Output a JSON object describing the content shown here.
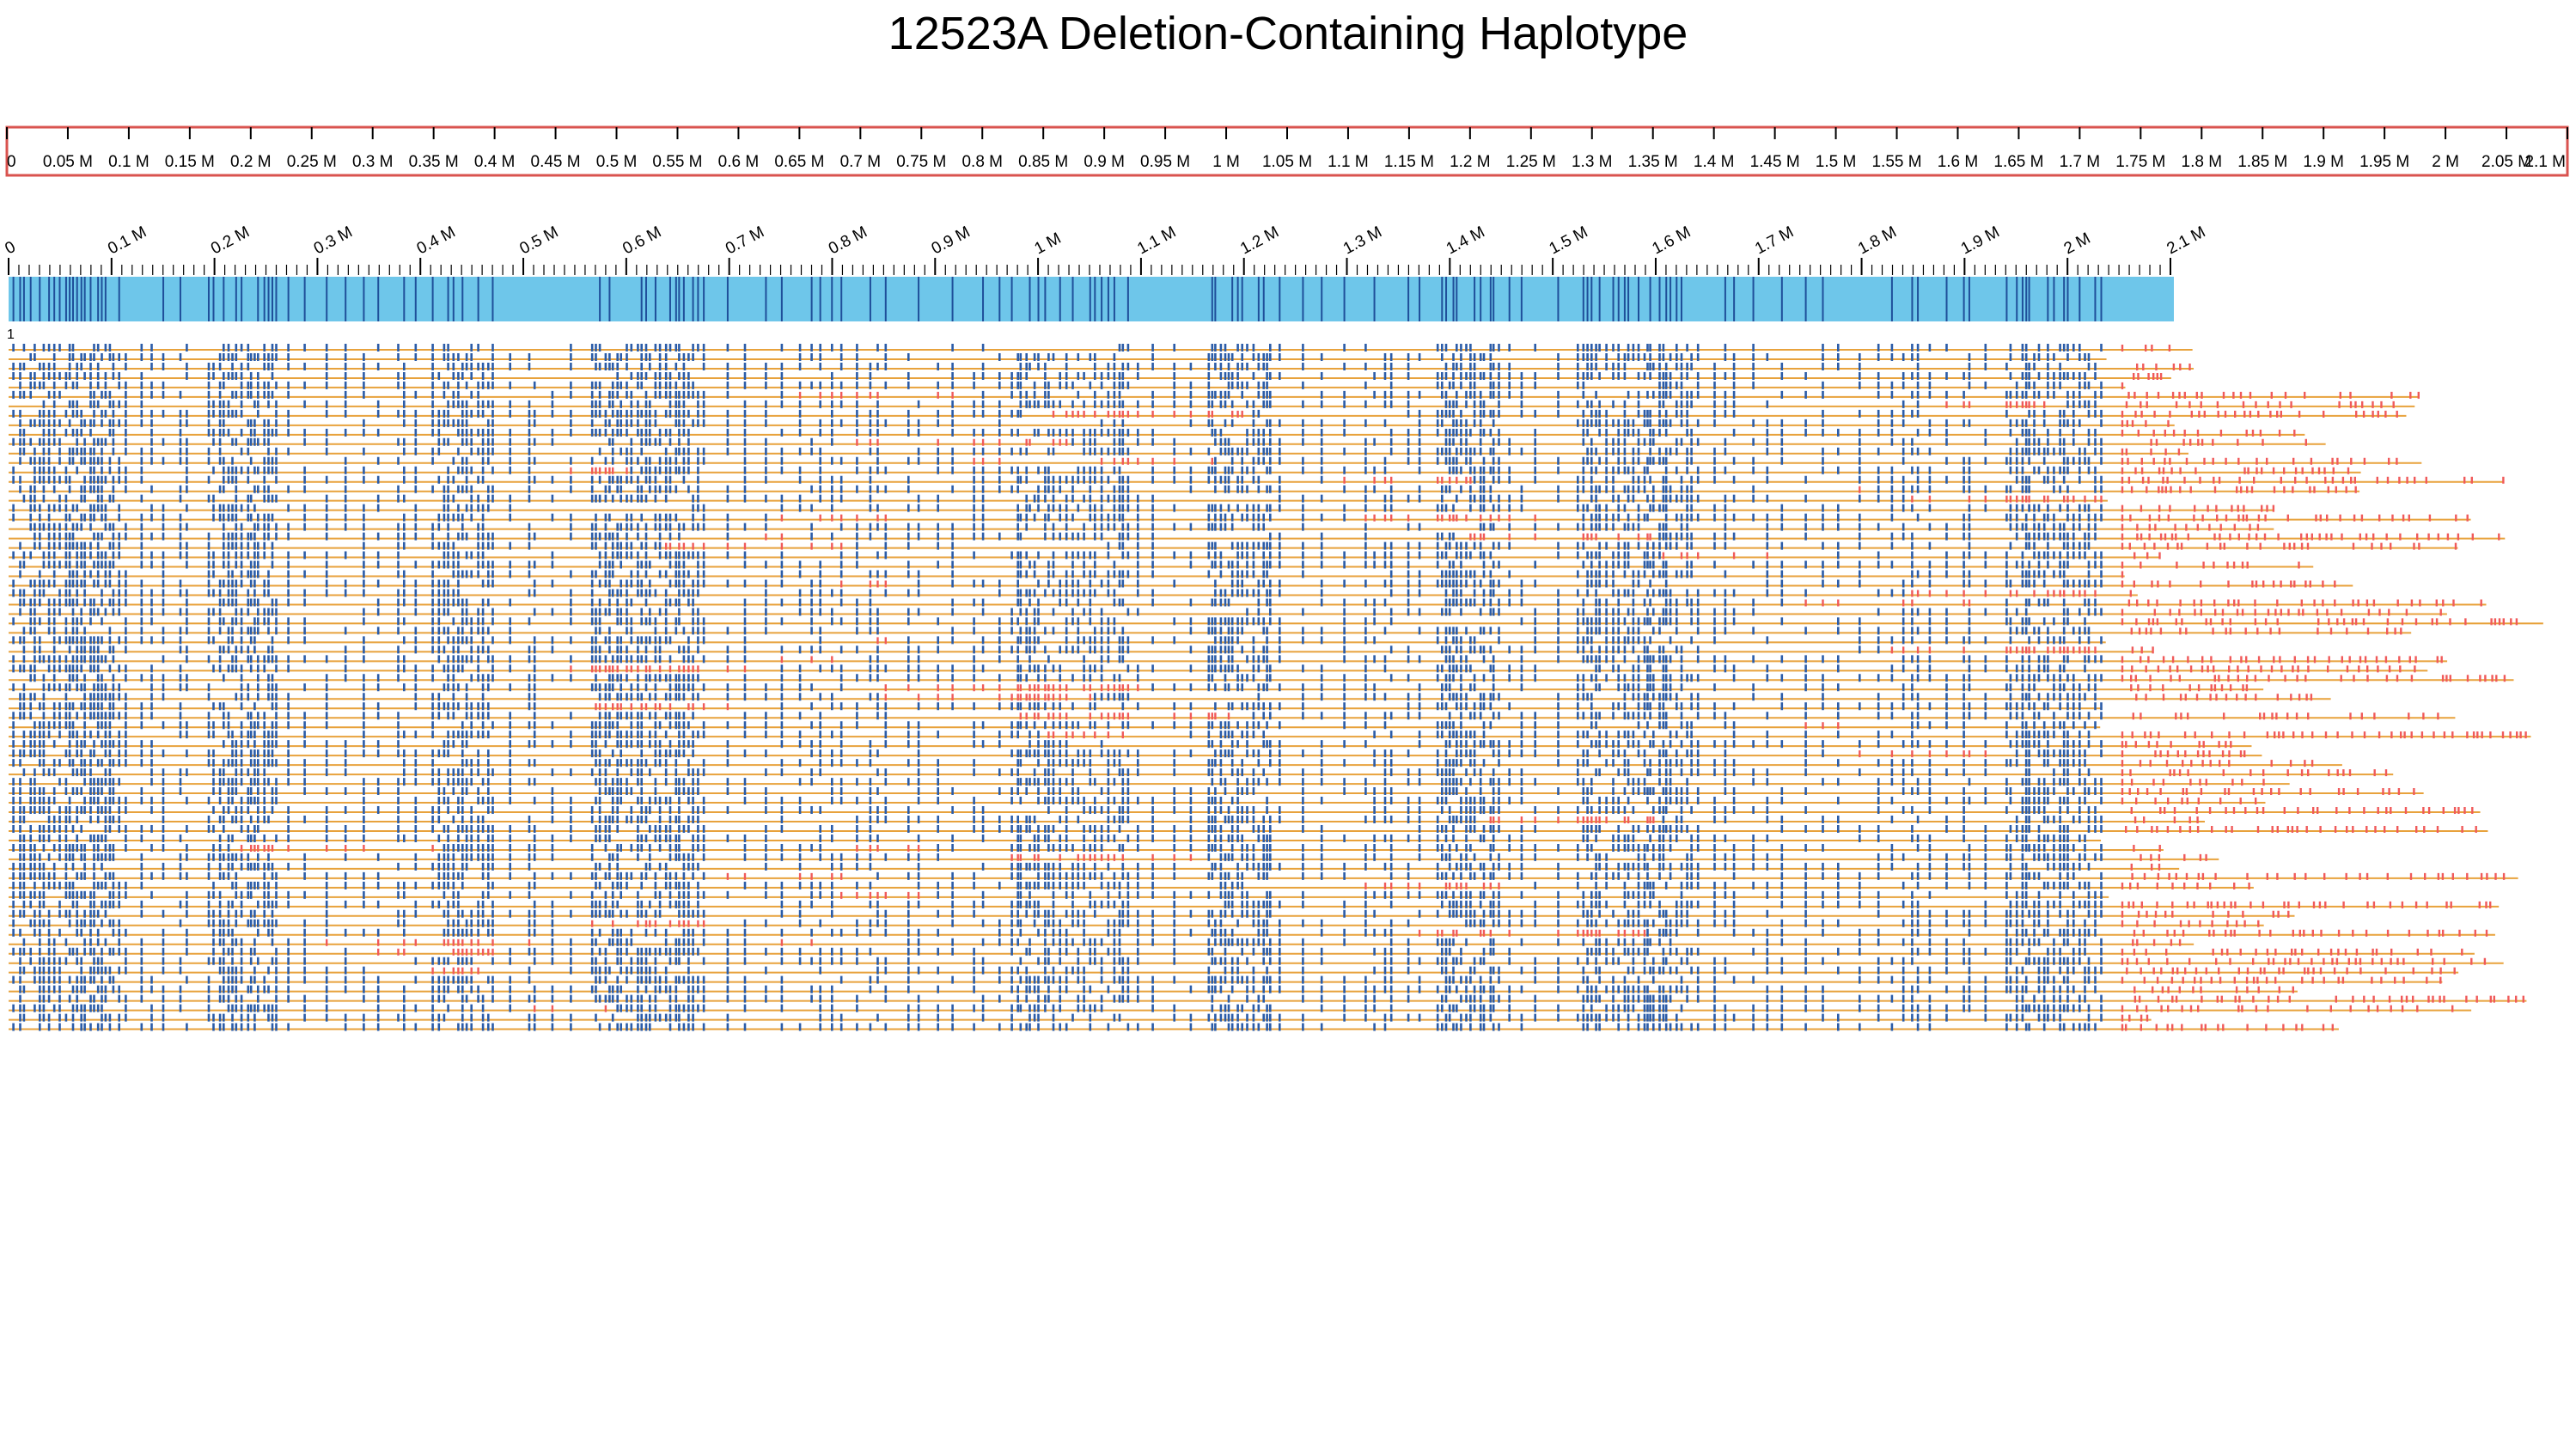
{
  "title": "12523A Deletion-Containing Haplotype",
  "top_ruler": {
    "tick_labels": [
      "0",
      "0.05 M",
      "0.1 M",
      "0.15 M",
      "0.2 M",
      "0.25 M",
      "0.3 M",
      "0.35 M",
      "0.4 M",
      "0.45 M",
      "0.5 M",
      "0.55 M",
      "0.6 M",
      "0.65 M",
      "0.7 M",
      "0.75 M",
      "0.8 M",
      "0.85 M",
      "0.9 M",
      "0.95 M",
      "1 M",
      "1.05 M",
      "1.1 M",
      "1.15 M",
      "1.2 M",
      "1.25 M",
      "1.3 M",
      "1.35 M",
      "1.4 M",
      "1.45 M",
      "1.5 M",
      "1.55 M",
      "1.6 M",
      "1.65 M",
      "1.7 M",
      "1.75 M",
      "1.8 M",
      "1.85 M",
      "1.9 M",
      "1.95 M",
      "2 M",
      "2.05 M",
      "2.1 M"
    ],
    "min_mb": 0,
    "max_mb": 2.1,
    "color": "#d9534f"
  },
  "contig_ruler": {
    "tick_labels": [
      "0",
      "0.1 M",
      "0.2 M",
      "0.3 M",
      "0.4 M",
      "0.5 M",
      "0.6 M",
      "0.7 M",
      "0.8 M",
      "0.9 M",
      "1 M",
      "1.1 M",
      "1.2 M",
      "1.3 M",
      "1.4 M",
      "1.5 M",
      "1.6 M",
      "1.7 M",
      "1.8 M",
      "1.9 M",
      "2 M",
      "2.1 M"
    ],
    "min_mb": 0,
    "max_mb": 2.1
  },
  "reference_label": "1",
  "colors": {
    "reference_bar": "#6ec6ea",
    "reference_marks": "#1f4f9a",
    "read_line": "#e8a23c",
    "matched_marks": "#2b5ca8",
    "unmatched_marks": "#f05a5a"
  }
}
